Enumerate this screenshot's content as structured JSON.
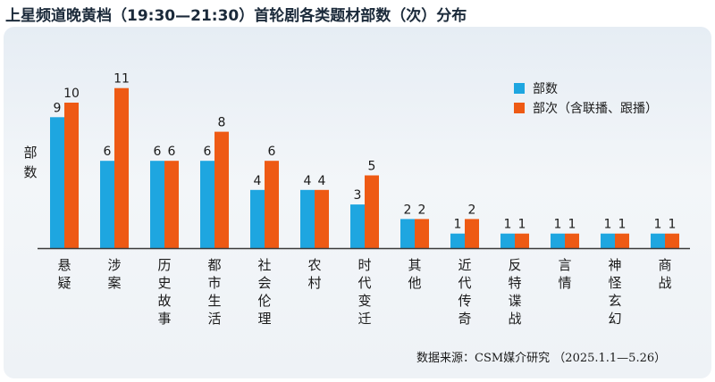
{
  "title": "上星频道晚黄档（19:30—21:30）首轮剧各类题材部数（次）分布",
  "source": "数据来源：CSM媒介研究 （2025.1.1—5.26）",
  "colors": {
    "series_1": "#1ea6e0",
    "series_2": "#ee5a14",
    "axis": "#3a3a3a"
  },
  "chart_data": {
    "type": "bar",
    "ylabel": "部数",
    "legend_position": "top-right",
    "grid": false,
    "ylim": [
      0,
      12
    ],
    "categories": [
      "悬疑",
      "涉案",
      "历史故事",
      "都市生活",
      "社会伦理",
      "农村",
      "时代变迁",
      "其他",
      "近代传奇",
      "反特谍战",
      "言情",
      "神怪玄幻",
      "商战"
    ],
    "series": [
      {
        "name": "部数",
        "values": [
          9,
          6,
          6,
          6,
          4,
          4,
          3,
          2,
          1,
          1,
          1,
          1,
          1
        ]
      },
      {
        "name": "部次（含联播、跟播）",
        "values": [
          10,
          11,
          6,
          8,
          6,
          4,
          5,
          2,
          2,
          1,
          1,
          1,
          1
        ]
      }
    ]
  }
}
